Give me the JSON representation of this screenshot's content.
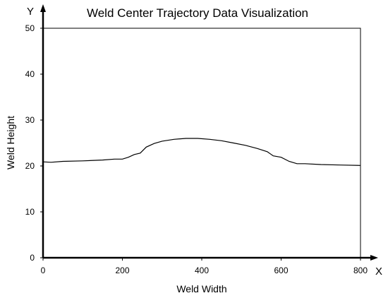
{
  "chart_data": {
    "type": "line",
    "title": "Weld Center Trajectory Data  Visualization",
    "xlabel": "Weld Width",
    "ylabel": "Weld Height",
    "x_axis_letter": "X",
    "y_axis_letter": "Y",
    "xlim": [
      0,
      800
    ],
    "ylim": [
      0,
      50
    ],
    "xticks": [
      0,
      200,
      400,
      600,
      800
    ],
    "yticks": [
      0,
      10,
      20,
      30,
      40,
      50
    ],
    "grid": false,
    "series": [
      {
        "color": "#000000",
        "x": [
          0,
          20,
          50,
          100,
          150,
          180,
          200,
          215,
          230,
          245,
          260,
          280,
          300,
          330,
          360,
          390,
          420,
          450,
          480,
          510,
          540,
          565,
          580,
          600,
          620,
          640,
          660,
          700,
          750,
          800
        ],
        "y": [
          20.9,
          20.8,
          21.0,
          21.1,
          21.3,
          21.5,
          21.5,
          21.9,
          22.5,
          22.8,
          24.1,
          24.9,
          25.4,
          25.8,
          26.0,
          26.0,
          25.8,
          25.5,
          25.0,
          24.5,
          23.8,
          23.1,
          22.2,
          21.9,
          21.0,
          20.5,
          20.5,
          20.3,
          20.2,
          20.1
        ]
      }
    ]
  }
}
